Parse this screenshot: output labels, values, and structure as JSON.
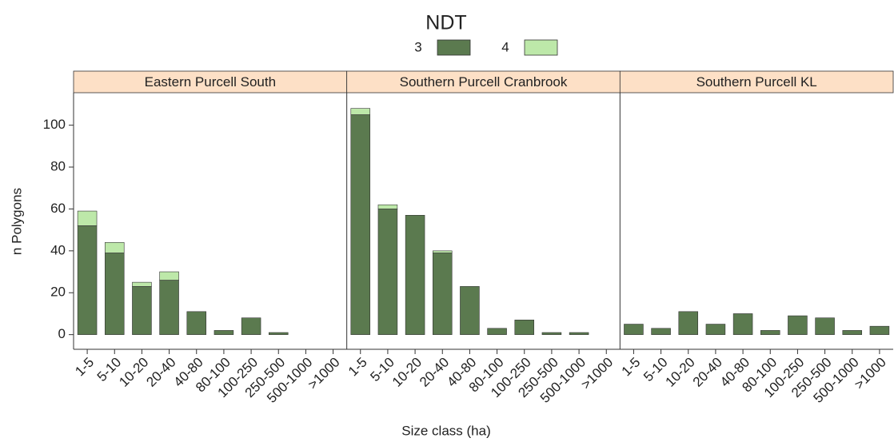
{
  "chart_data": {
    "type": "bar",
    "stacked": true,
    "legend_title": "NDT",
    "ylabel": "n Polygons",
    "xlabel": "Size class (ha)",
    "facets": [
      "Eastern Purcell South",
      "Southern Purcell Cranbrook",
      "Southern Purcell KL"
    ],
    "categories": [
      "1-5",
      "5-10",
      "10-20",
      "20-40",
      "40-80",
      "80-100",
      "100-250",
      "250-500",
      "500-1000",
      ">1000"
    ],
    "series": [
      {
        "name": "3",
        "color": "#5b7a4f",
        "values": [
          [
            52,
            39,
            23,
            26,
            11,
            2,
            8,
            1,
            0,
            0
          ],
          [
            105,
            60,
            57,
            39,
            23,
            3,
            7,
            1,
            1,
            0
          ],
          [
            5,
            3,
            11,
            5,
            10,
            2,
            9,
            8,
            2,
            4
          ]
        ]
      },
      {
        "name": "4",
        "color": "#bde8a9",
        "values": [
          [
            7,
            5,
            2,
            4,
            0,
            0,
            0,
            0,
            0,
            0
          ],
          [
            3,
            2,
            0,
            1,
            0,
            0,
            0,
            0,
            0,
            0
          ],
          [
            0,
            0,
            0,
            0,
            0,
            0,
            0,
            0,
            0,
            0
          ]
        ]
      }
    ],
    "ylim": [
      -7,
      115.5
    ],
    "yticks": [
      0,
      20,
      40,
      60,
      80,
      100
    ],
    "grid": false,
    "legend_position": "top"
  }
}
